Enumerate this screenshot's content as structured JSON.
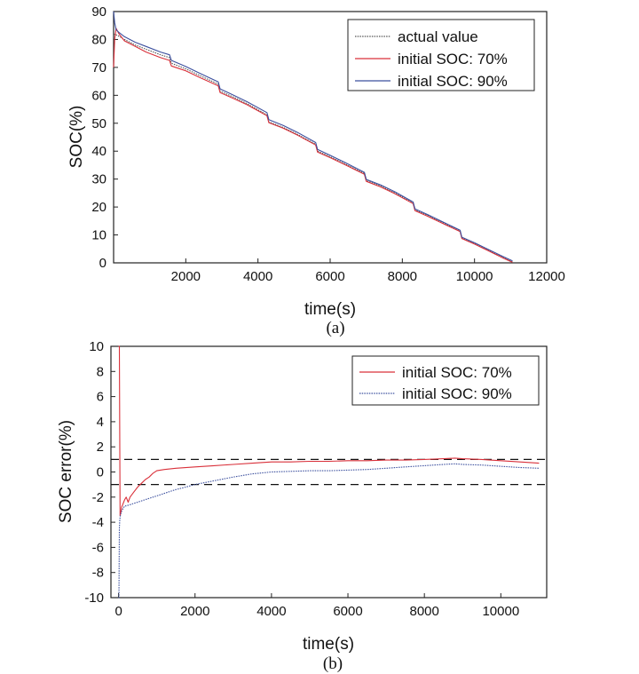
{
  "chart_data": [
    {
      "type": "line",
      "id": "a",
      "caption": "(a)",
      "xlabel": "time(s)",
      "ylabel": "SOC(%)",
      "xlim": [
        0,
        12000
      ],
      "ylim": [
        0,
        90
      ],
      "xticks": [
        2000,
        4000,
        6000,
        8000,
        10000,
        12000
      ],
      "xtick_labels": [
        "2000",
        "4000",
        "6000",
        "8000",
        "10000",
        "12000"
      ],
      "yticks": [
        0,
        10,
        20,
        30,
        40,
        50,
        60,
        70,
        80,
        90
      ],
      "ytick_labels": [
        "0",
        "10",
        "20",
        "30",
        "40",
        "50",
        "60",
        "70",
        "80",
        "90"
      ],
      "legend_position": "top-right",
      "series": [
        {
          "name": "actual value",
          "color": "#555555",
          "style": "dotted",
          "x": [
            0,
            100,
            300,
            600,
            900,
            1300,
            1550,
            1600,
            2000,
            2400,
            2900,
            2950,
            3300,
            3700,
            4250,
            4300,
            4700,
            5100,
            5600,
            5650,
            6000,
            6400,
            6950,
            7000,
            7400,
            7800,
            8300,
            8350,
            8700,
            9100,
            9600,
            9650,
            10000,
            10400,
            10800,
            11050
          ],
          "values": [
            82,
            81.5,
            80,
            78,
            76.5,
            74.5,
            73.5,
            71.5,
            69.5,
            67,
            64,
            61.5,
            59.5,
            57,
            53,
            50.5,
            48.5,
            46,
            42.5,
            40,
            38,
            35.5,
            32,
            29.5,
            27.5,
            25,
            21.5,
            19,
            17,
            14.5,
            11.5,
            9,
            7,
            4.5,
            2,
            0.5
          ]
        },
        {
          "name": "initial SOC: 70%",
          "color": "#d9303a",
          "style": "solid",
          "x": [
            0,
            30,
            70,
            150,
            300,
            600,
            900,
            1300,
            1550,
            1600,
            2000,
            2400,
            2900,
            2950,
            3300,
            3700,
            4250,
            4300,
            4700,
            5100,
            5600,
            5650,
            6000,
            6400,
            6950,
            7000,
            7400,
            7800,
            8300,
            8350,
            8700,
            9100,
            9600,
            9650,
            10000,
            10400,
            10800,
            11050
          ],
          "values": [
            70,
            80,
            84,
            82,
            79.5,
            77.5,
            75.5,
            73.5,
            72.5,
            70.5,
            68.8,
            66.3,
            63.4,
            61,
            59,
            56.6,
            52.7,
            50.2,
            48.2,
            45.7,
            42.2,
            39.7,
            37.7,
            35.2,
            31.7,
            29.2,
            27.2,
            24.7,
            21.2,
            18.7,
            16.7,
            14.2,
            11.2,
            8.7,
            6.7,
            4.2,
            1.7,
            0.2
          ]
        },
        {
          "name": "initial SOC: 90%",
          "color": "#3b4f9e",
          "style": "solid",
          "x": [
            0,
            30,
            70,
            150,
            300,
            600,
            900,
            1300,
            1550,
            1600,
            2000,
            2400,
            2900,
            2950,
            3300,
            3700,
            4250,
            4300,
            4700,
            5100,
            5600,
            5650,
            6000,
            6400,
            6950,
            7000,
            7400,
            7800,
            8300,
            8350,
            8700,
            9100,
            9600,
            9650,
            10000,
            10400,
            10800,
            11050
          ],
          "values": [
            90,
            86,
            83.5,
            82.5,
            81,
            79,
            77.5,
            75.5,
            74.5,
            72.5,
            70.3,
            67.8,
            64.8,
            62.3,
            60.2,
            57.7,
            53.8,
            51.3,
            49.2,
            46.7,
            43.1,
            40.6,
            38.5,
            36,
            32.4,
            29.9,
            27.9,
            25.4,
            21.8,
            19.3,
            17.3,
            14.8,
            11.7,
            9.2,
            7.2,
            4.7,
            2.2,
            0.7
          ]
        }
      ]
    },
    {
      "type": "line",
      "id": "b",
      "caption": "(b)",
      "xlabel": "time(s)",
      "ylabel": "SOC error(%)",
      "xlim": [
        -200,
        11200
      ],
      "ylim": [
        -10,
        10
      ],
      "xticks": [
        0,
        2000,
        4000,
        6000,
        8000,
        10000
      ],
      "xtick_labels": [
        "0",
        "2000",
        "4000",
        "6000",
        "8000",
        "10000"
      ],
      "yticks": [
        -10,
        -8,
        -6,
        -4,
        -2,
        0,
        2,
        4,
        6,
        8,
        10
      ],
      "ytick_labels": [
        "-10",
        "-8",
        "-6",
        "-4",
        "-2",
        "0",
        "2",
        "4",
        "6",
        "8",
        "10"
      ],
      "reference_lines": [
        1,
        -1
      ],
      "legend_position": "top-right",
      "series": [
        {
          "name": "initial SOC: 70%",
          "color": "#d9303a",
          "style": "solid",
          "x": [
            0,
            20,
            40,
            60,
            80,
            120,
            160,
            200,
            250,
            300,
            400,
            500,
            600,
            700,
            800,
            900,
            1000,
            1200,
            1500,
            2000,
            2500,
            3000,
            3500,
            4000,
            4500,
            5000,
            5500,
            6000,
            6500,
            7000,
            7500,
            8000,
            8500,
            8800,
            9000,
            9500,
            10000,
            10500,
            11000
          ],
          "values": [
            10,
            10,
            -3.5,
            -3.2,
            -2.8,
            -2.5,
            -2.2,
            -2.0,
            -2.4,
            -2.0,
            -1.6,
            -1.2,
            -0.9,
            -0.6,
            -0.4,
            -0.1,
            0.1,
            0.2,
            0.3,
            0.4,
            0.5,
            0.6,
            0.7,
            0.8,
            0.8,
            0.85,
            0.85,
            0.9,
            0.9,
            0.95,
            0.95,
            1.0,
            1.05,
            1.1,
            1.05,
            1.0,
            0.9,
            0.8,
            0.7
          ]
        },
        {
          "name": "initial SOC: 90%",
          "color": "#3b4f9e",
          "style": "dotted",
          "x": [
            0,
            10,
            20,
            30,
            40,
            60,
            80,
            120,
            160,
            200,
            300,
            400,
            500,
            700,
            900,
            1100,
            1300,
            1500,
            1700,
            2000,
            2500,
            3000,
            3500,
            4000,
            4500,
            5000,
            5500,
            6000,
            6500,
            7000,
            7500,
            8000,
            8500,
            8800,
            9000,
            9500,
            10000,
            10500,
            11000
          ],
          "values": [
            -10,
            -10,
            -4.5,
            -3.9,
            -3.6,
            -3.3,
            -3.1,
            -2.9,
            -2.7,
            -2.7,
            -2.6,
            -2.5,
            -2.4,
            -2.2,
            -2.0,
            -1.8,
            -1.6,
            -1.4,
            -1.25,
            -1.0,
            -0.7,
            -0.4,
            -0.15,
            0.0,
            0.05,
            0.1,
            0.1,
            0.15,
            0.2,
            0.3,
            0.4,
            0.5,
            0.6,
            0.65,
            0.6,
            0.55,
            0.45,
            0.35,
            0.3
          ]
        }
      ]
    }
  ]
}
